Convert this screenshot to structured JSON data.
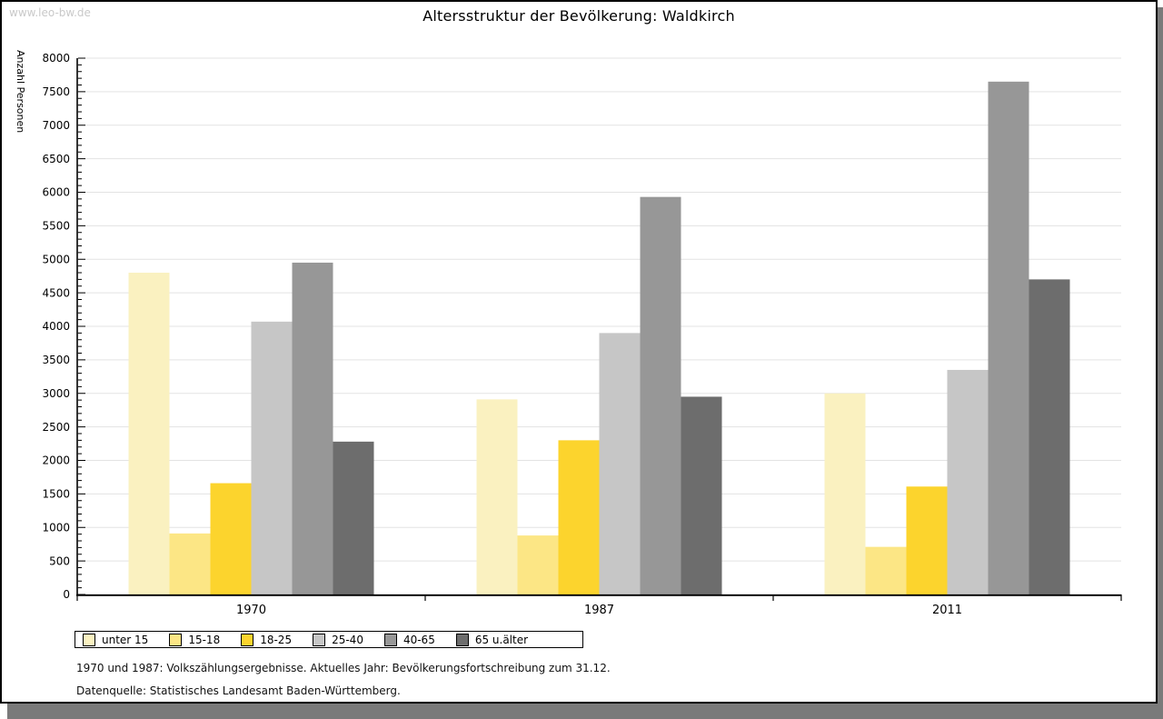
{
  "watermark": "www.leo-bw.de",
  "title": "Altersstruktur der Bevölkerung: Waldkirch",
  "chart_data": {
    "type": "bar",
    "title": "Altersstruktur der Bevölkerung: Waldkirch",
    "xlabel": "",
    "ylabel": "Anzahl Personen",
    "ylim": [
      0,
      8000
    ],
    "ytick_step": 500,
    "minor_tick_step": 100,
    "grid": true,
    "legend_position": "bottom-left",
    "categories": [
      "1970",
      "1987",
      "2011"
    ],
    "series": [
      {
        "name": "unter 15",
        "color": "#faf1c0",
        "values": [
          4800,
          2910,
          3000
        ]
      },
      {
        "name": "15-18",
        "color": "#fce685",
        "values": [
          910,
          880,
          710
        ]
      },
      {
        "name": "18-25",
        "color": "#fcd42d",
        "values": [
          1660,
          2300,
          1610
        ]
      },
      {
        "name": "25-40",
        "color": "#c6c6c6",
        "values": [
          4070,
          3900,
          3350
        ]
      },
      {
        "name": "40-65",
        "color": "#979797",
        "values": [
          4950,
          5930,
          7650
        ]
      },
      {
        "name": "65 u.älter",
        "color": "#6d6d6d",
        "values": [
          2280,
          2950,
          4700
        ]
      }
    ]
  },
  "footnotes": [
    "1970 und 1987: Volkszählungsergebnisse. Aktuelles Jahr: Bevölkerungsfortschreibung zum 31.12.",
    "Datenquelle: Statistisches Landesamt Baden-Württemberg."
  ]
}
